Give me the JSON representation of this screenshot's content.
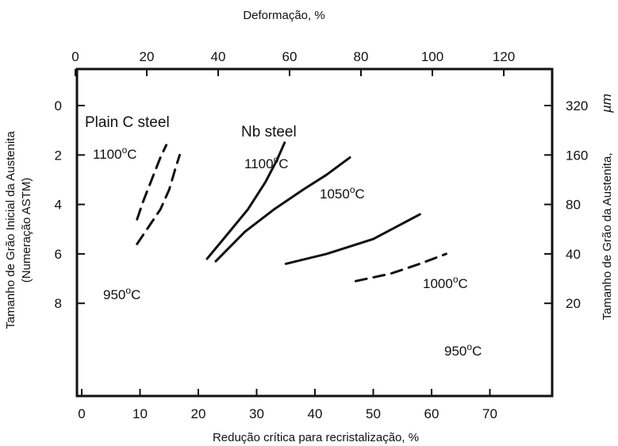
{
  "chart_data": {
    "type": "line",
    "title": "",
    "xlabel": "Redução crítica para recristalização, %",
    "x2label": "Deformação, %",
    "ylabel_line1": "Tamanho de Grão Inicial da Austenita",
    "ylabel_line2": "(Numeração ASTM)",
    "y2label": "Tamanho de Grão da Austenita,",
    "y2unit": "µm",
    "xlim": [
      0,
      80
    ],
    "ylim": [
      8,
      -1
    ],
    "x_ticks": [
      "0",
      "10",
      "20",
      "30",
      "40",
      "50",
      "60",
      "70"
    ],
    "x2_ticks": [
      "0",
      "20",
      "40",
      "60",
      "80",
      "100",
      "120"
    ],
    "y_ticks": [
      "0",
      "2",
      "4",
      "6",
      "8"
    ],
    "y2_ticks": [
      "320",
      "160",
      "80",
      "40",
      "20"
    ],
    "grid": false,
    "annotations": {
      "plain_steel": "Plain C steel",
      "nb_steel": "Nb steel",
      "plain_1100": "1100",
      "plain_950": "950",
      "nb_1100": "1100",
      "nb_1050": "1050",
      "nb_1000": "1000",
      "nb_950": "950",
      "deg_symbol": "o",
      "unit_c": "C"
    },
    "series": [
      {
        "style": "dashed",
        "points": [
          [
            9.5,
            4.6
          ],
          [
            10.5,
            3.9
          ],
          [
            12,
            3.0
          ],
          [
            13.5,
            2.1
          ],
          [
            14.5,
            1.6
          ]
        ]
      },
      {
        "style": "dashed",
        "points": [
          [
            9.5,
            5.6
          ],
          [
            11.5,
            4.9
          ],
          [
            13.5,
            4.2
          ],
          [
            15,
            3.4
          ],
          [
            16,
            2.6
          ],
          [
            16.8,
            2.0
          ]
        ]
      },
      {
        "style": "solid",
        "points": [
          [
            21.5,
            6.2
          ],
          [
            25,
            5.2
          ],
          [
            28.5,
            4.2
          ],
          [
            31.5,
            3.1
          ],
          [
            33.5,
            2.2
          ],
          [
            34.8,
            1.5
          ]
        ]
      },
      {
        "style": "solid",
        "points": [
          [
            23,
            6.3
          ],
          [
            28,
            5.1
          ],
          [
            33,
            4.2
          ],
          [
            38,
            3.4
          ],
          [
            42,
            2.8
          ],
          [
            46,
            2.1
          ]
        ]
      },
      {
        "style": "solid",
        "points": [
          [
            35,
            6.4
          ],
          [
            42,
            6.0
          ],
          [
            50,
            5.4
          ],
          [
            58,
            4.4
          ]
        ]
      },
      {
        "style": "dashed",
        "points": [
          [
            47,
            7.1
          ],
          [
            53,
            6.8
          ],
          [
            58,
            6.4
          ],
          [
            62.5,
            6.0
          ]
        ]
      }
    ]
  }
}
